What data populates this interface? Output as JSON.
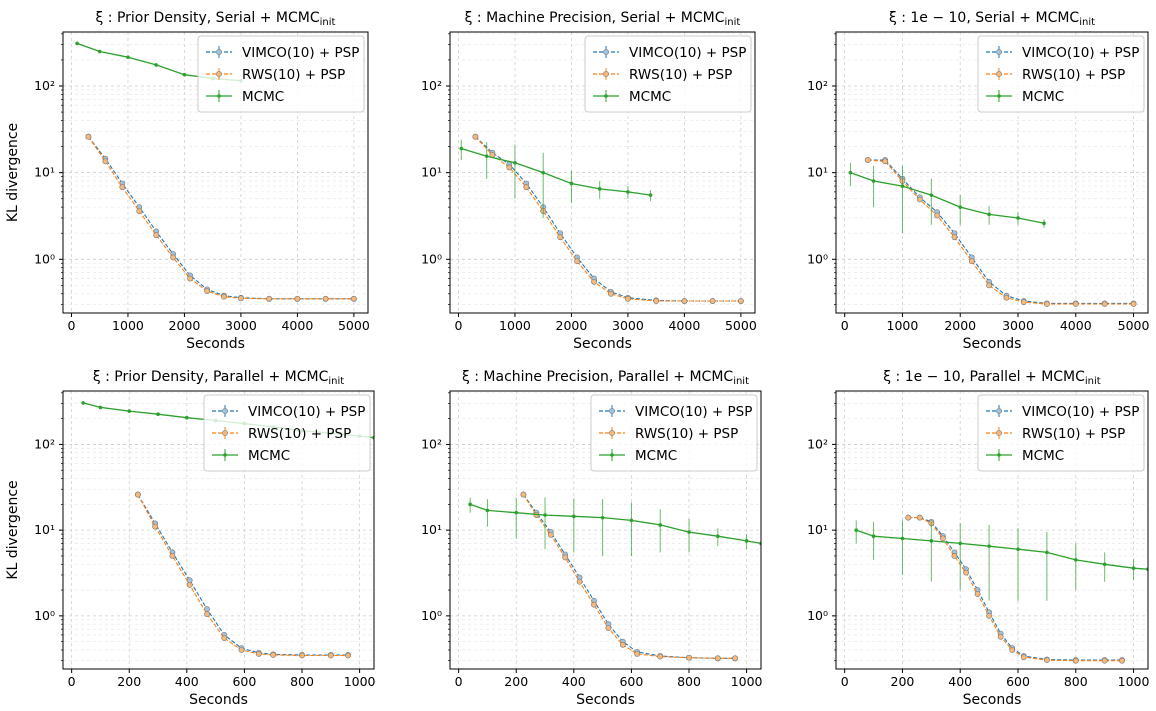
{
  "figure": {
    "ylabel_text": "KL divergence",
    "xlabel_text": "Seconds"
  },
  "colors": {
    "vimco": "#1f77b4",
    "rws": "#ff7f0e",
    "mcmc": "#2ca02c"
  },
  "chart_data": [
    {
      "type": "line",
      "title": "ξ :  Prior Density, Serial + MCMC",
      "title_sub": "init",
      "xlabel": "Seconds",
      "ylabel": "KL divergence",
      "yscale": "log",
      "xlim": [
        -150,
        5250
      ],
      "ylim": [
        0.24,
        420
      ],
      "xticks": [
        0,
        1000,
        2000,
        3000,
        4000,
        5000
      ],
      "xtick_labels": [
        "0",
        "1000",
        "2000",
        "3000",
        "4000",
        "5000"
      ],
      "yticks": [
        1,
        10,
        100
      ],
      "ytick_labels": [
        "10⁰",
        "10¹",
        "10²"
      ],
      "grid": true,
      "legend_position": "top-right",
      "legend": [
        "VIMCO(10) + PSP",
        "RWS(10) + PSP",
        "MCMC"
      ],
      "series": [
        {
          "name": "VIMCO(10) + PSP",
          "x": [
            300,
            600,
            900,
            1200,
            1500,
            1800,
            2100,
            2400,
            2700,
            3000,
            3500,
            4000,
            4500,
            5000
          ],
          "y": [
            26,
            14.5,
            7.5,
            4.0,
            2.1,
            1.15,
            0.65,
            0.45,
            0.38,
            0.36,
            0.35,
            0.35,
            0.35,
            0.35
          ]
        },
        {
          "name": "RWS(10) + PSP",
          "x": [
            300,
            600,
            900,
            1200,
            1500,
            1800,
            2100,
            2400,
            2700,
            3000,
            3500,
            4000,
            4500,
            5000
          ],
          "y": [
            26,
            13.5,
            6.8,
            3.6,
            1.9,
            1.05,
            0.6,
            0.43,
            0.37,
            0.355,
            0.35,
            0.35,
            0.35,
            0.35
          ]
        },
        {
          "name": "MCMC",
          "x": [
            100,
            500,
            1000,
            1500,
            2000,
            2500,
            3000
          ],
          "y": [
            310,
            250,
            215,
            175,
            135,
            122,
            115
          ],
          "err": [
            5,
            4,
            4,
            4,
            3,
            3,
            3
          ]
        }
      ]
    },
    {
      "type": "line",
      "title": "ξ :  Machine Precision, Serial + MCMC",
      "title_sub": "init",
      "xlabel": "Seconds",
      "ylabel": "",
      "yscale": "log",
      "xlim": [
        -150,
        5250
      ],
      "ylim": [
        0.24,
        420
      ],
      "xticks": [
        0,
        1000,
        2000,
        3000,
        4000,
        5000
      ],
      "xtick_labels": [
        "0",
        "1000",
        "2000",
        "3000",
        "4000",
        "5000"
      ],
      "yticks": [
        1,
        10,
        100
      ],
      "ytick_labels": [
        "10⁰",
        "10¹",
        "10²"
      ],
      "grid": true,
      "legend_position": "top-right",
      "legend": [
        "VIMCO(10) + PSP",
        "RWS(10) + PSP",
        "MCMC"
      ],
      "series": [
        {
          "name": "VIMCO(10) + PSP",
          "x": [
            300,
            600,
            900,
            1200,
            1500,
            1800,
            2100,
            2400,
            2700,
            3000,
            3500,
            4000,
            4500,
            5000
          ],
          "y": [
            26,
            17,
            12.5,
            7.5,
            4.0,
            2.0,
            1.05,
            0.6,
            0.42,
            0.36,
            0.335,
            0.33,
            0.33,
            0.33
          ]
        },
        {
          "name": "RWS(10) + PSP",
          "x": [
            300,
            600,
            900,
            1200,
            1500,
            1800,
            2100,
            2400,
            2700,
            3000,
            3500,
            4000,
            4500,
            5000
          ],
          "y": [
            26,
            16,
            11.5,
            6.8,
            3.6,
            1.8,
            0.95,
            0.55,
            0.4,
            0.35,
            0.33,
            0.33,
            0.33,
            0.33
          ]
        },
        {
          "name": "MCMC",
          "x": [
            50,
            500,
            1000,
            1500,
            2000,
            2500,
            3000,
            3400
          ],
          "y": [
            19,
            15.5,
            13,
            10,
            7.5,
            6.5,
            6.0,
            5.5
          ],
          "err": [
            5,
            7,
            8,
            7,
            3,
            1.5,
            1,
            0.8
          ]
        }
      ]
    },
    {
      "type": "line",
      "title": "ξ :  1e − 10, Serial + MCMC",
      "title_sub": "init",
      "xlabel": "Seconds",
      "ylabel": "",
      "yscale": "log",
      "xlim": [
        -150,
        5250
      ],
      "ylim": [
        0.24,
        420
      ],
      "xticks": [
        0,
        1000,
        2000,
        3000,
        4000,
        5000
      ],
      "xtick_labels": [
        "0",
        "1000",
        "2000",
        "3000",
        "4000",
        "5000"
      ],
      "yticks": [
        1,
        10,
        100
      ],
      "ytick_labels": [
        "10⁰",
        "10¹",
        "10²"
      ],
      "grid": true,
      "legend_position": "top-right",
      "legend": [
        "VIMCO(10) + PSP",
        "RWS(10) + PSP",
        "MCMC"
      ],
      "series": [
        {
          "name": "VIMCO(10) + PSP",
          "x": [
            400,
            700,
            1000,
            1300,
            1600,
            1900,
            2200,
            2500,
            2800,
            3100,
            3500,
            4000,
            4500,
            5000
          ],
          "y": [
            14,
            14,
            8.5,
            5.2,
            3.5,
            2.0,
            1.05,
            0.55,
            0.38,
            0.33,
            0.31,
            0.31,
            0.31,
            0.31
          ]
        },
        {
          "name": "RWS(10) + PSP",
          "x": [
            400,
            700,
            1000,
            1300,
            1600,
            1900,
            2200,
            2500,
            2800,
            3100,
            3500,
            4000,
            4500,
            5000
          ],
          "y": [
            14,
            13.5,
            8.0,
            4.9,
            3.2,
            1.8,
            0.95,
            0.5,
            0.36,
            0.32,
            0.305,
            0.305,
            0.305,
            0.305
          ]
        },
        {
          "name": "MCMC",
          "x": [
            100,
            500,
            1000,
            1500,
            2000,
            2500,
            3000,
            3450
          ],
          "y": [
            10,
            8.0,
            7.0,
            5.5,
            4.0,
            3.3,
            3.0,
            2.6
          ],
          "err": [
            3,
            4,
            5,
            3,
            1.5,
            0.8,
            0.5,
            0.3
          ]
        }
      ]
    },
    {
      "type": "line",
      "title": "ξ :  Prior Density, Parallel + MCMC",
      "title_sub": "init",
      "xlabel": "Seconds",
      "ylabel": "KL divergence",
      "yscale": "log",
      "xlim": [
        -30,
        1050
      ],
      "ylim": [
        0.24,
        420
      ],
      "xticks": [
        0,
        200,
        400,
        600,
        800,
        1000
      ],
      "xtick_labels": [
        "0",
        "200",
        "400",
        "600",
        "800",
        "1000"
      ],
      "yticks": [
        1,
        10,
        100
      ],
      "ytick_labels": [
        "10⁰",
        "10¹",
        "10²"
      ],
      "grid": true,
      "legend_position": "top-right",
      "legend": [
        "VIMCO(10) + PSP",
        "RWS(10) + PSP",
        "MCMC"
      ],
      "series": [
        {
          "name": "VIMCO(10) + PSP",
          "x": [
            230,
            290,
            350,
            410,
            470,
            530,
            590,
            650,
            700,
            800,
            900,
            960
          ],
          "y": [
            26,
            12,
            5.5,
            2.6,
            1.2,
            0.6,
            0.42,
            0.37,
            0.355,
            0.35,
            0.35,
            0.35
          ]
        },
        {
          "name": "RWS(10) + PSP",
          "x": [
            230,
            290,
            350,
            410,
            470,
            530,
            590,
            650,
            700,
            800,
            900,
            960
          ],
          "y": [
            26,
            11,
            5.0,
            2.3,
            1.05,
            0.55,
            0.4,
            0.36,
            0.35,
            0.345,
            0.345,
            0.345
          ]
        },
        {
          "name": "MCMC",
          "x": [
            40,
            100,
            200,
            300,
            400,
            500,
            600,
            700,
            800,
            900,
            1000,
            1050
          ],
          "y": [
            305,
            270,
            245,
            225,
            205,
            190,
            175,
            160,
            145,
            135,
            125,
            120
          ],
          "err": [
            4,
            4,
            4,
            4,
            3,
            3,
            3,
            3,
            3,
            3,
            3,
            3
          ]
        }
      ]
    },
    {
      "type": "line",
      "title": "ξ : Machine Precision, Parallel + MCMC",
      "title_sub": "init",
      "xlabel": "Seconds",
      "ylabel": "",
      "yscale": "log",
      "xlim": [
        -30,
        1050
      ],
      "ylim": [
        0.24,
        420
      ],
      "xticks": [
        0,
        200,
        400,
        600,
        800,
        1000
      ],
      "xtick_labels": [
        "0",
        "200",
        "400",
        "600",
        "800",
        "1000"
      ],
      "yticks": [
        1,
        10,
        100
      ],
      "ytick_labels": [
        "10⁰",
        "10¹",
        "10²"
      ],
      "grid": true,
      "legend_position": "top-right",
      "legend": [
        "VIMCO(10) + PSP",
        "RWS(10) + PSP",
        "MCMC"
      ],
      "series": [
        {
          "name": "VIMCO(10) + PSP",
          "x": [
            225,
            270,
            320,
            370,
            420,
            470,
            520,
            570,
            620,
            700,
            800,
            900,
            960
          ],
          "y": [
            26,
            16,
            9.5,
            5.2,
            2.8,
            1.5,
            0.8,
            0.5,
            0.38,
            0.34,
            0.325,
            0.32,
            0.32
          ]
        },
        {
          "name": "RWS(10) + PSP",
          "x": [
            225,
            270,
            320,
            370,
            420,
            470,
            520,
            570,
            620,
            700,
            800,
            900,
            960
          ],
          "y": [
            26,
            15,
            8.8,
            4.8,
            2.5,
            1.35,
            0.72,
            0.46,
            0.36,
            0.335,
            0.325,
            0.32,
            0.32
          ]
        },
        {
          "name": "MCMC",
          "x": [
            40,
            100,
            200,
            300,
            400,
            500,
            600,
            700,
            800,
            900,
            1000,
            1050
          ],
          "y": [
            20,
            17,
            16,
            15,
            14.5,
            14,
            13,
            11.5,
            9.5,
            8.5,
            7.5,
            7.0
          ],
          "err": [
            4,
            6,
            8,
            9,
            9,
            9,
            8,
            6,
            4,
            2,
            1.5,
            1
          ]
        }
      ]
    },
    {
      "type": "line",
      "title": "ξ :  1e − 10, Parallel + MCMC",
      "title_sub": "init",
      "xlabel": "Seconds",
      "ylabel": "",
      "yscale": "log",
      "xlim": [
        -30,
        1050
      ],
      "ylim": [
        0.24,
        420
      ],
      "xticks": [
        0,
        200,
        400,
        600,
        800,
        1000
      ],
      "xtick_labels": [
        "0",
        "200",
        "400",
        "600",
        "800",
        "1000"
      ],
      "yticks": [
        1,
        10,
        100
      ],
      "ytick_labels": [
        "10⁰",
        "10¹",
        "10²"
      ],
      "grid": true,
      "legend_position": "top-right",
      "legend": [
        "VIMCO(10) + PSP",
        "RWS(10) + PSP",
        "MCMC"
      ],
      "series": [
        {
          "name": "VIMCO(10) + PSP",
          "x": [
            220,
            260,
            300,
            340,
            380,
            420,
            460,
            500,
            540,
            580,
            620,
            700,
            800,
            900,
            960
          ],
          "y": [
            14,
            14,
            12.5,
            8.5,
            5.5,
            3.5,
            2.0,
            1.1,
            0.62,
            0.42,
            0.34,
            0.31,
            0.305,
            0.305,
            0.305
          ]
        },
        {
          "name": "RWS(10) + PSP",
          "x": [
            220,
            260,
            300,
            340,
            380,
            420,
            460,
            500,
            540,
            580,
            620,
            700,
            800,
            900,
            960
          ],
          "y": [
            14,
            14,
            12,
            8.0,
            5.0,
            3.2,
            1.8,
            1.0,
            0.57,
            0.4,
            0.33,
            0.305,
            0.3,
            0.3,
            0.3
          ]
        },
        {
          "name": "MCMC",
          "x": [
            40,
            100,
            200,
            300,
            400,
            500,
            600,
            700,
            800,
            900,
            1000,
            1050
          ],
          "y": [
            10,
            8.5,
            8.0,
            7.5,
            7.0,
            6.5,
            6.0,
            5.5,
            4.5,
            4.0,
            3.6,
            3.5
          ],
          "err": [
            3,
            4,
            5,
            5,
            5,
            5,
            4.5,
            4,
            2.5,
            1.5,
            1,
            0.8
          ]
        }
      ]
    }
  ]
}
